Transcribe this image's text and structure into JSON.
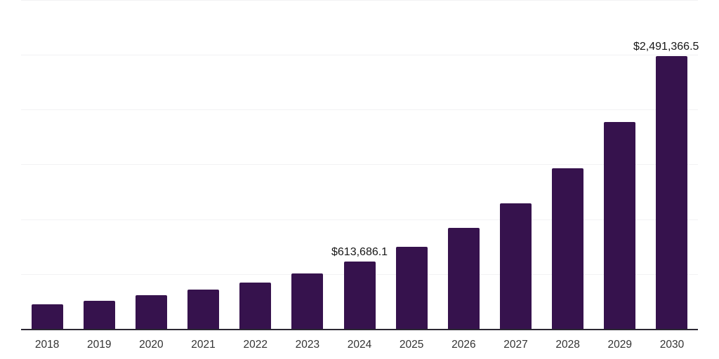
{
  "chart_data": {
    "type": "bar",
    "categories": [
      "2018",
      "2019",
      "2020",
      "2021",
      "2022",
      "2023",
      "2024",
      "2025",
      "2026",
      "2027",
      "2028",
      "2029",
      "2030"
    ],
    "values": [
      225000,
      258000,
      305000,
      358000,
      424000,
      505000,
      613686.1,
      747000,
      920000,
      1143000,
      1465000,
      1890000,
      2491366.5
    ],
    "value_labels": {
      "2024": "$613,686.1",
      "2030": "$2,491,366.5"
    },
    "title": "",
    "xlabel": "",
    "ylabel": "",
    "ylim": [
      0,
      3000000
    ],
    "gridlines": [
      500000,
      1000000,
      1500000,
      2000000,
      2500000,
      3000000
    ],
    "grid": "horizontal",
    "legend": "none",
    "colors": {
      "bar": "#36124d",
      "gridline": "#f2f2f4",
      "axis_line": "#2b2733",
      "tick_label": "#333333",
      "value_label": "#161616",
      "background": "#ffffff"
    }
  }
}
